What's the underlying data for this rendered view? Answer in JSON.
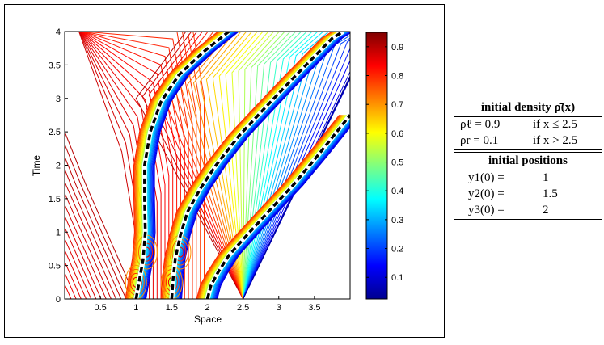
{
  "chart_data": {
    "type": "contour",
    "xlabel": "Space",
    "ylabel": "Time",
    "xlim": [
      0,
      4
    ],
    "ylim": [
      0,
      4
    ],
    "xticks": [
      "0.5",
      "1",
      "1.5",
      "2",
      "2.5",
      "3",
      "3.5"
    ],
    "xtick_values": [
      0.5,
      1,
      1.5,
      2,
      2.5,
      3,
      3.5
    ],
    "yticks": [
      "0",
      "0.5",
      "1",
      "1.5",
      "2",
      "2.5",
      "3",
      "3.5",
      "4"
    ],
    "ytick_values": [
      0,
      0.5,
      1,
      1.5,
      2,
      2.5,
      3,
      3.5,
      4
    ],
    "colorbar": {
      "range": [
        0.025,
        0.95
      ],
      "ticks": [
        "0.1",
        "0.2",
        "0.3",
        "0.4",
        "0.5",
        "0.6",
        "0.7",
        "0.8",
        "0.9"
      ],
      "tick_values": [
        0.1,
        0.2,
        0.3,
        0.4,
        0.5,
        0.6,
        0.7,
        0.8,
        0.9
      ]
    },
    "trajectories": [
      {
        "name": "y1",
        "points": [
          [
            1.0,
            0
          ],
          [
            1.05,
            0.3
          ],
          [
            1.1,
            0.6
          ],
          [
            1.13,
            1.0
          ],
          [
            1.12,
            1.5
          ],
          [
            1.12,
            2.0
          ],
          [
            1.2,
            2.5
          ],
          [
            1.35,
            2.95
          ],
          [
            1.6,
            3.35
          ],
          [
            1.95,
            3.7
          ],
          [
            2.3,
            4.0
          ]
        ]
      },
      {
        "name": "y2",
        "points": [
          [
            1.5,
            0
          ],
          [
            1.52,
            0.3
          ],
          [
            1.55,
            0.6
          ],
          [
            1.62,
            0.95
          ],
          [
            1.72,
            1.3
          ],
          [
            1.9,
            1.65
          ],
          [
            2.12,
            2.0
          ],
          [
            2.45,
            2.45
          ],
          [
            2.8,
            2.85
          ],
          [
            3.2,
            3.3
          ],
          [
            3.75,
            3.9
          ],
          [
            3.9,
            4.0
          ]
        ]
      },
      {
        "name": "y3",
        "points": [
          [
            2.0,
            0
          ],
          [
            2.05,
            0.2
          ],
          [
            2.15,
            0.4
          ],
          [
            2.3,
            0.65
          ],
          [
            2.55,
            0.95
          ],
          [
            2.85,
            1.3
          ],
          [
            3.2,
            1.7
          ],
          [
            3.55,
            2.15
          ],
          [
            3.85,
            2.55
          ],
          [
            4.0,
            2.75
          ]
        ]
      }
    ]
  },
  "table": {
    "density_header": "initial density ρ̄(x)",
    "density_rows": [
      {
        "label": "ρℓ = 0.9",
        "cond": "if x ≤ 2.5"
      },
      {
        "label": "ρr = 0.1",
        "cond": "if x > 2.5"
      }
    ],
    "positions_header": "initial positions",
    "position_rows": [
      {
        "label": "y1(0) =",
        "value": "1"
      },
      {
        "label": "y2(0) =",
        "value": "1.5"
      },
      {
        "label": "y3(0) =",
        "value": "2"
      }
    ]
  }
}
